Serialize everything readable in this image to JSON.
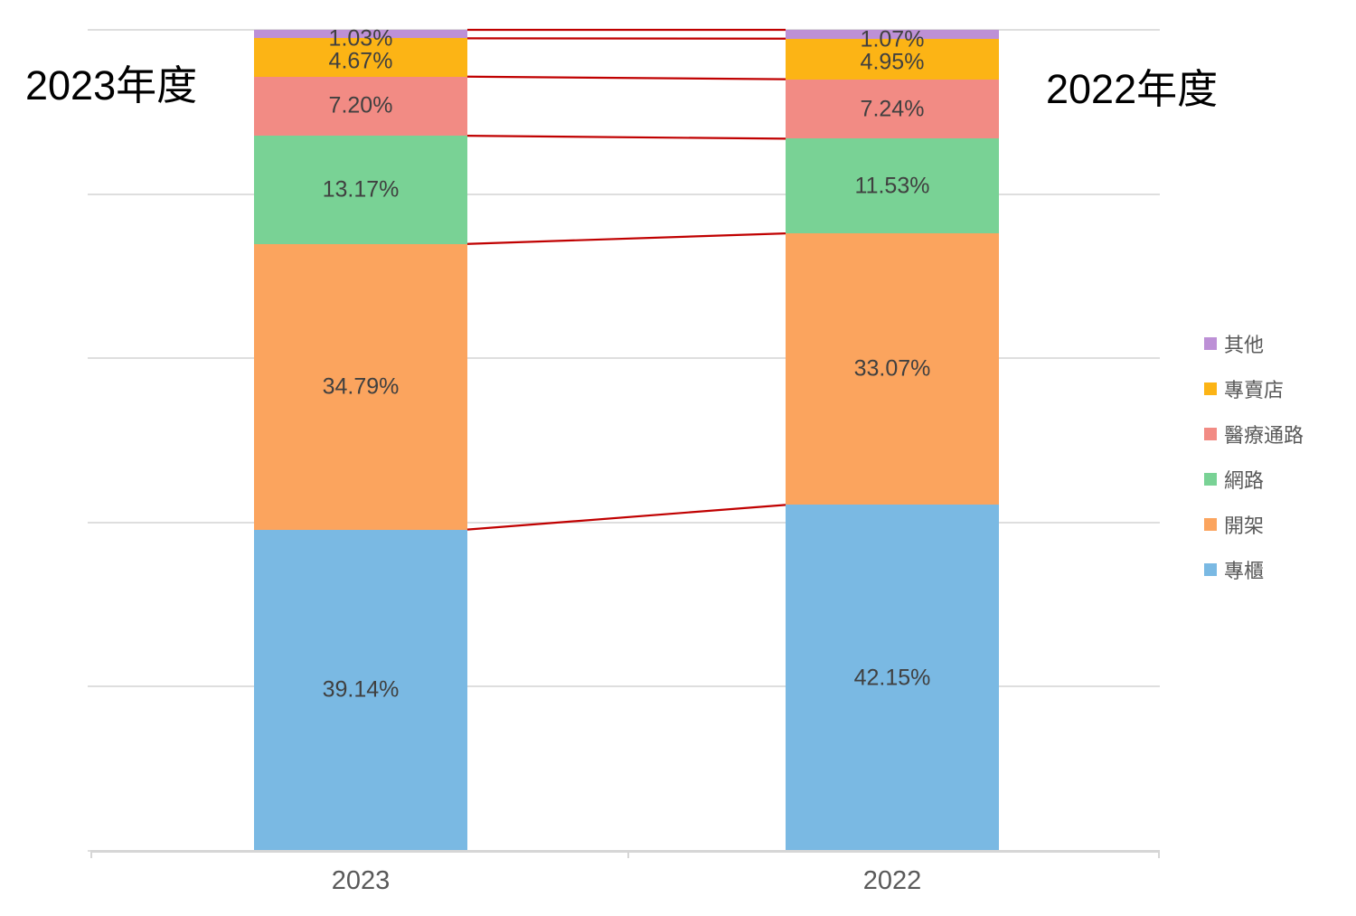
{
  "titles": {
    "left": "2023年度",
    "right": "2022年度"
  },
  "chart_data": {
    "type": "bar",
    "variant": "100-percent-stacked-columns-with-connector-lines",
    "title": "",
    "categories": [
      "2023",
      "2022"
    ],
    "category_titles": [
      "2023年度",
      "2022年度"
    ],
    "series": [
      {
        "name": "專櫃",
        "color": "#7AB9E3",
        "values": [
          39.14,
          42.15
        ],
        "labels": [
          "39.14%",
          "42.15%"
        ]
      },
      {
        "name": "開架",
        "color": "#FBA45E",
        "values": [
          34.79,
          33.07
        ],
        "labels": [
          "34.79%",
          "33.07%"
        ]
      },
      {
        "name": "網路",
        "color": "#79D295",
        "values": [
          13.17,
          11.53
        ],
        "labels": [
          "13.17%",
          "11.53%"
        ]
      },
      {
        "name": "醫療通路",
        "color": "#F28B84",
        "values": [
          7.2,
          7.24
        ],
        "labels": [
          "7.20%",
          "7.24%"
        ]
      },
      {
        "name": "專賣店",
        "color": "#FCB415",
        "values": [
          4.67,
          4.95
        ],
        "labels": [
          "4.67%",
          "4.95%"
        ]
      },
      {
        "name": "其他",
        "color": "#BD90D6",
        "values": [
          1.03,
          1.07
        ],
        "labels": [
          "1.03%",
          "1.07%"
        ]
      }
    ],
    "legend": {
      "position": "right",
      "order_top_to_bottom": [
        "其他",
        "專賣店",
        "醫療通路",
        "網路",
        "開架",
        "專櫃"
      ]
    },
    "axis": {
      "ymin": 0,
      "ymax": 100,
      "gridline_step_pct": 20,
      "grid": "on"
    },
    "colors": {
      "connector_line": "#C00000",
      "segment_label": "#404040",
      "axis_label": "#595959",
      "gridline": "#DEDEDE",
      "axis_line": "#D6D6D6"
    }
  }
}
